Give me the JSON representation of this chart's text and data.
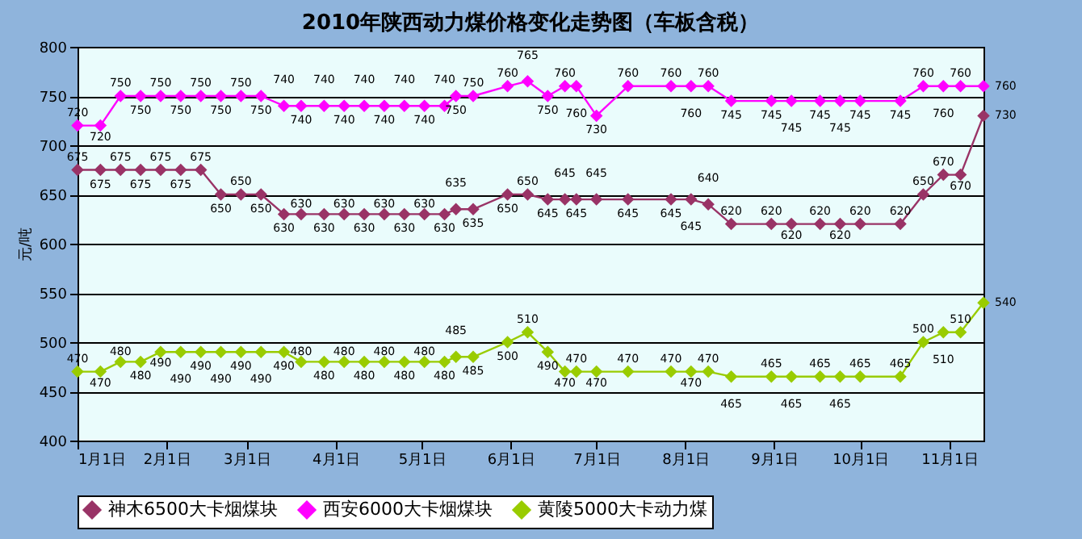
{
  "chart_data": {
    "type": "line",
    "title": "2010年陕西动力煤价格变化走势图（车板含税）",
    "ylabel": "元/吨",
    "x": [
      "2010-01-01",
      "2010-01-09",
      "2010-01-16",
      "2010-01-23",
      "2010-01-30",
      "2010-02-06",
      "2010-02-13",
      "2010-02-20",
      "2010-02-27",
      "2010-03-06",
      "2010-03-14",
      "2010-03-20",
      "2010-03-28",
      "2010-04-04",
      "2010-04-11",
      "2010-04-18",
      "2010-04-25",
      "2010-05-02",
      "2010-05-09",
      "2010-05-13",
      "2010-05-19",
      "2010-05-31",
      "2010-06-07",
      "2010-06-14",
      "2010-06-20",
      "2010-06-24",
      "2010-07-01",
      "2010-07-12",
      "2010-07-27",
      "2010-08-03",
      "2010-08-09",
      "2010-08-17",
      "2010-08-31",
      "2010-09-07",
      "2010-09-17",
      "2010-09-24",
      "2010-10-01",
      "2010-10-15",
      "2010-10-23",
      "2010-10-30",
      "2010-11-05",
      "2010-11-13"
    ],
    "series": [
      {
        "name": "神木6500大卡烟煤块",
        "color": "#993366",
        "values": [
          675,
          675,
          675,
          675,
          675,
          675,
          675,
          650,
          650,
          650,
          630,
          630,
          630,
          630,
          630,
          630,
          630,
          630,
          630,
          635,
          635,
          650,
          650,
          645,
          645,
          645,
          645,
          645,
          645,
          645,
          640,
          620,
          620,
          620,
          620,
          620,
          620,
          620,
          650,
          670,
          670,
          730
        ]
      },
      {
        "name": "西安6000大卡烟煤块",
        "color": "#ff00ff",
        "values": [
          720,
          720,
          750,
          750,
          750,
          750,
          750,
          750,
          750,
          750,
          740,
          740,
          740,
          740,
          740,
          740,
          740,
          740,
          740,
          750,
          750,
          760,
          765,
          750,
          760,
          760,
          730,
          760,
          760,
          760,
          760,
          745,
          745,
          745,
          745,
          745,
          745,
          745,
          760,
          760,
          760,
          760
        ]
      },
      {
        "name": "黄陵5000大卡动力煤",
        "color": "#99cc00",
        "values": [
          470,
          470,
          480,
          480,
          490,
          490,
          490,
          490,
          490,
          490,
          490,
          480,
          480,
          480,
          480,
          480,
          480,
          480,
          480,
          485,
          485,
          500,
          510,
          490,
          470,
          470,
          470,
          470,
          470,
          470,
          470,
          465,
          465,
          465,
          465,
          465,
          465,
          465,
          500,
          510,
          510,
          540
        ]
      }
    ],
    "xlim": [
      "2010-01-01",
      "2010-11-13"
    ],
    "xticks": [
      {
        "value": "2010-01-01",
        "label": "1月1日"
      },
      {
        "value": "2010-02-01",
        "label": "2月1日"
      },
      {
        "value": "2010-03-01",
        "label": "3月1日"
      },
      {
        "value": "2010-04-01",
        "label": "4月1日"
      },
      {
        "value": "2010-05-01",
        "label": "5月1日"
      },
      {
        "value": "2010-06-01",
        "label": "6月1日"
      },
      {
        "value": "2010-07-01",
        "label": "7月1日"
      },
      {
        "value": "2010-08-01",
        "label": "8月1日"
      },
      {
        "value": "2010-09-01",
        "label": "9月1日"
      },
      {
        "value": "2010-10-01",
        "label": "10月1日"
      },
      {
        "value": "2010-11-01",
        "label": "11月1日"
      }
    ],
    "ylim": [
      400,
      800
    ],
    "yticks": [
      400,
      450,
      500,
      550,
      600,
      650,
      700,
      750,
      800
    ],
    "grid": "y",
    "legend": "bottom",
    "marker": "diamond",
    "line_style": "solid",
    "data_labels": true
  }
}
